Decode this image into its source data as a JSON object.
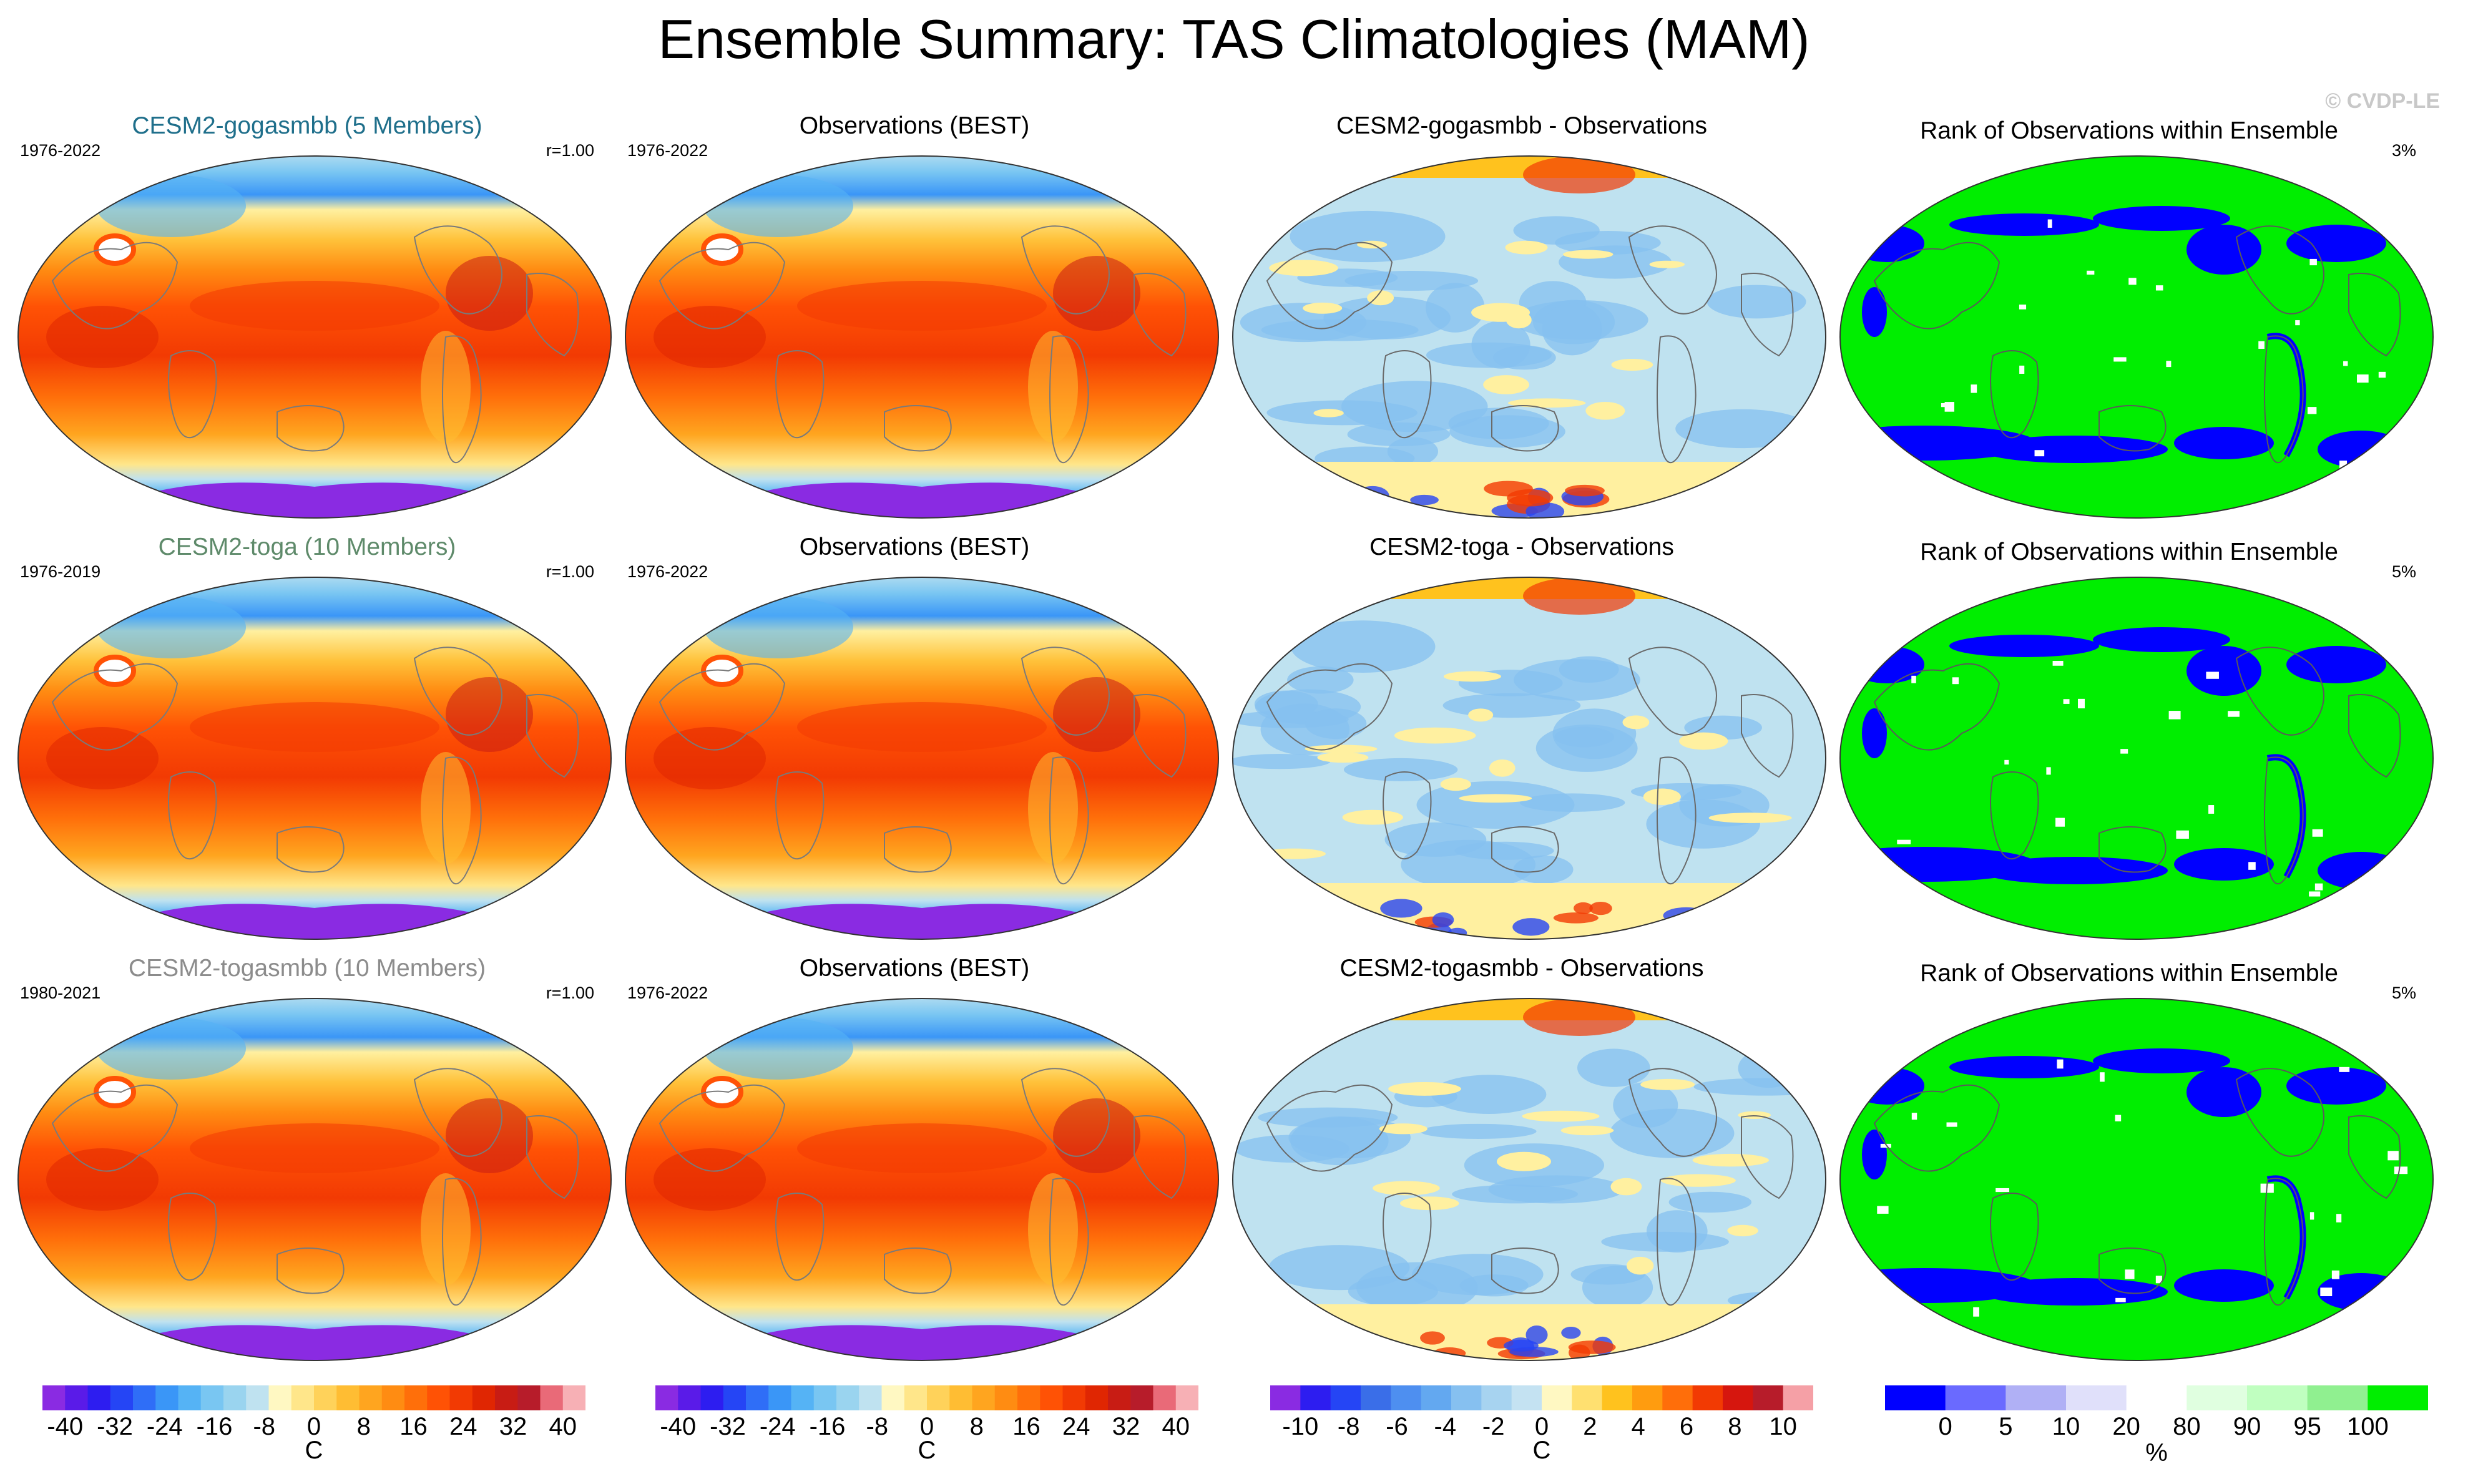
{
  "figure_title": "Ensemble Summary: TAS Climatologies (MAM)",
  "watermark": "© CVDP-LE",
  "rows": [
    {
      "model": {
        "title": "CESM2-gogasmbb (5 Members)",
        "title_color": "#1f6f8b",
        "years": "1976-2022",
        "corr": "r=1.00"
      },
      "obs": {
        "title": "Observations (BEST)",
        "years": "1976-2022"
      },
      "diff": {
        "title": "CESM2-gogasmbb - Observations"
      },
      "rank": {
        "title": "Rank of Observations within Ensemble",
        "pct": "3%"
      }
    },
    {
      "model": {
        "title": "CESM2-toga (10 Members)",
        "title_color": "#5e8a6a",
        "years": "1976-2019",
        "corr": "r=1.00"
      },
      "obs": {
        "title": "Observations (BEST)",
        "years": "1976-2022"
      },
      "diff": {
        "title": "CESM2-toga - Observations"
      },
      "rank": {
        "title": "Rank of Observations within Ensemble",
        "pct": "5%"
      }
    },
    {
      "model": {
        "title": "CESM2-togasmbb (10 Members)",
        "title_color": "#8c8c8c",
        "years": "1980-2021",
        "corr": "r=1.00"
      },
      "obs": {
        "title": "Observations (BEST)",
        "years": "1976-2022"
      },
      "diff": {
        "title": "CESM2-togasmbb - Observations"
      },
      "rank": {
        "title": "Rank of Observations within Ensemble",
        "pct": "5%"
      }
    }
  ],
  "colorbars": [
    {
      "unit": "C",
      "labels": [
        "-40",
        "-32",
        "-24",
        "-16",
        "-8",
        "0",
        "8",
        "16",
        "24",
        "32",
        "40"
      ],
      "colors": [
        "#8a2be2",
        "#5a1be8",
        "#2d1df0",
        "#2545f5",
        "#2f6ef7",
        "#3a96f7",
        "#55b3f5",
        "#79c6f2",
        "#9ad4ef",
        "#bfe2f0",
        "#fff8c2",
        "#ffe68a",
        "#ffd25a",
        "#ffbd33",
        "#ffa51f",
        "#ff8c12",
        "#ff6f0a",
        "#ff5205",
        "#f23a03",
        "#e02602",
        "#c81c14",
        "#b71c2a",
        "#e96a78",
        "#f7b0b5"
      ]
    },
    {
      "unit": "C",
      "labels": [
        "-40",
        "-32",
        "-24",
        "-16",
        "-8",
        "0",
        "8",
        "16",
        "24",
        "32",
        "40"
      ],
      "colors": [
        "#8a2be2",
        "#5a1be8",
        "#2d1df0",
        "#2545f5",
        "#2f6ef7",
        "#3a96f7",
        "#55b3f5",
        "#79c6f2",
        "#9ad4ef",
        "#bfe2f0",
        "#fff8c2",
        "#ffe68a",
        "#ffd25a",
        "#ffbd33",
        "#ffa51f",
        "#ff8c12",
        "#ff6f0a",
        "#ff5205",
        "#f23a03",
        "#e02602",
        "#c81c14",
        "#b71c2a",
        "#e96a78",
        "#f7b0b5"
      ]
    },
    {
      "unit": "C",
      "labels": [
        "-10",
        "-8",
        "-6",
        "-4",
        "-2",
        "0",
        "2",
        "4",
        "6",
        "8",
        "10"
      ],
      "colors": [
        "#8a2be2",
        "#2d1df0",
        "#2545f5",
        "#3a6ee8",
        "#4e8ff0",
        "#63a8f0",
        "#86c0f0",
        "#a7d3f0",
        "#c4e2f2",
        "#fff8c2",
        "#ffe070",
        "#ffc21e",
        "#ff9c0f",
        "#ff6e0a",
        "#f23a03",
        "#d6160e",
        "#b71c2a",
        "#f5a0a6"
      ]
    },
    {
      "unit": "%",
      "labels": [
        "0",
        "5",
        "10",
        "20",
        "80",
        "90",
        "95",
        "100"
      ],
      "colors": [
        "#0000ff",
        "#6a6aff",
        "#b0b0f5",
        "#e0e0fa",
        "#ffffff",
        "#e0ffe0",
        "#c0ffc0",
        "#90f090",
        "#00ee00"
      ]
    }
  ]
}
